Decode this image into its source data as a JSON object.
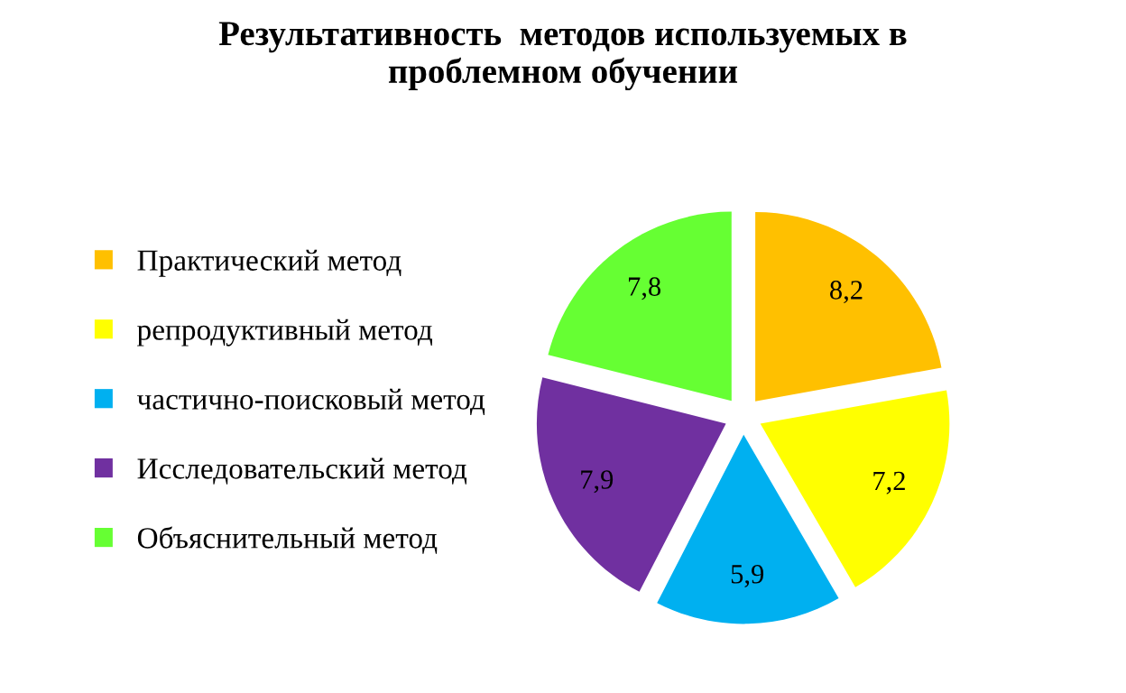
{
  "chart_data": {
    "type": "pie",
    "title": "Результативность  методов используемых в\nпроблемном обучении",
    "categories": [
      "Практический метод",
      "репродуктивный метод",
      "частично-поисковый метод",
      "Исследовательский метод",
      "Объяснительный метод"
    ],
    "values": [
      8.2,
      7.2,
      5.9,
      7.9,
      7.8
    ],
    "value_labels": [
      "8,2",
      "7,2",
      "5,9",
      "7,9",
      "7,8"
    ],
    "colors": [
      "#ffc000",
      "#ffff00",
      "#00b0f0",
      "#7030a0",
      "#66ff33"
    ],
    "legend": "left"
  }
}
